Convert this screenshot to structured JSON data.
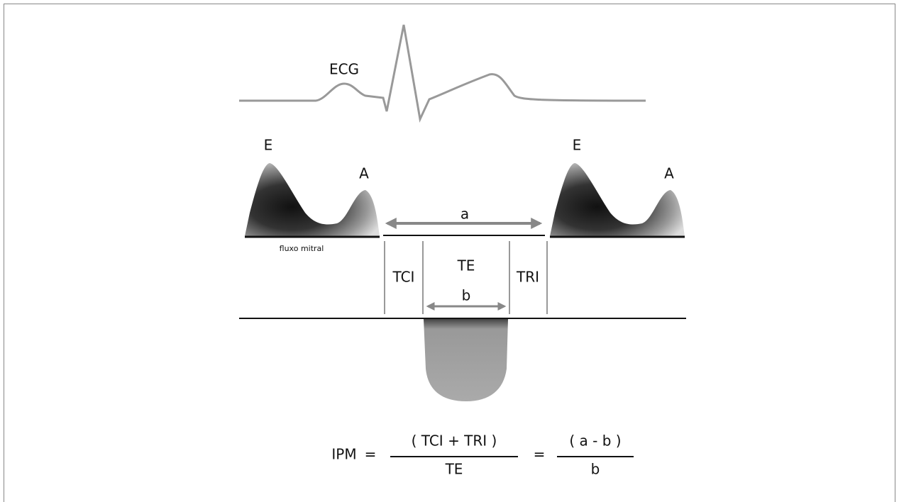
{
  "ecg_label": "ECG",
  "mitral_flow": {
    "left": {
      "e": "E",
      "a": "A"
    },
    "right": {
      "e": "E",
      "a": "A"
    },
    "caption": "fluxo mitral"
  },
  "intervals": {
    "a": "a",
    "tci": "TCI",
    "te": "TE",
    "tri": "TRI",
    "b": "b"
  },
  "formula": {
    "lhs": "IPM",
    "eq1": "=",
    "num1": "( TCI + TRI )",
    "den1": "TE",
    "eq2": "=",
    "num2": "( a - b )",
    "den2": "b"
  }
}
